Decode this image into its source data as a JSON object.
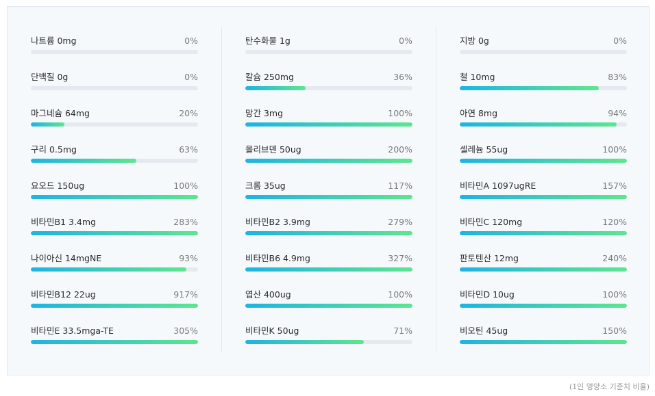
{
  "columns": [
    [
      {
        "label": "나트륨 0mg",
        "pct": "0%",
        "value": 0
      },
      {
        "label": "단백질 0g",
        "pct": "0%",
        "value": 0
      },
      {
        "label": "마그네슘 64mg",
        "pct": "20%",
        "value": 20
      },
      {
        "label": "구리 0.5mg",
        "pct": "63%",
        "value": 63
      },
      {
        "label": "요오드 150ug",
        "pct": "100%",
        "value": 100
      },
      {
        "label": "비타민B1 3.4mg",
        "pct": "283%",
        "value": 283
      },
      {
        "label": "나이아신 14mgNE",
        "pct": "93%",
        "value": 93
      },
      {
        "label": "비타민B12 22ug",
        "pct": "917%",
        "value": 917
      },
      {
        "label": "비타민E 33.5mga-TE",
        "pct": "305%",
        "value": 305
      }
    ],
    [
      {
        "label": "탄수화물 1g",
        "pct": "0%",
        "value": 0
      },
      {
        "label": "칼슘 250mg",
        "pct": "36%",
        "value": 36
      },
      {
        "label": "망간 3mg",
        "pct": "100%",
        "value": 100
      },
      {
        "label": "몰리브덴 50ug",
        "pct": "200%",
        "value": 200
      },
      {
        "label": "크롬 35ug",
        "pct": "117%",
        "value": 117
      },
      {
        "label": "비타민B2 3.9mg",
        "pct": "279%",
        "value": 279
      },
      {
        "label": "비타민B6 4.9mg",
        "pct": "327%",
        "value": 327
      },
      {
        "label": "엽산 400ug",
        "pct": "100%",
        "value": 100
      },
      {
        "label": "비타민K 50ug",
        "pct": "71%",
        "value": 71
      }
    ],
    [
      {
        "label": "지방 0g",
        "pct": "0%",
        "value": 0
      },
      {
        "label": "철 10mg",
        "pct": "83%",
        "value": 83
      },
      {
        "label": "아연 8mg",
        "pct": "94%",
        "value": 94
      },
      {
        "label": "셀레늄 55ug",
        "pct": "100%",
        "value": 100
      },
      {
        "label": "비타민A 1097ugRE",
        "pct": "157%",
        "value": 157
      },
      {
        "label": "비타민C 120mg",
        "pct": "120%",
        "value": 120
      },
      {
        "label": "판토텐산 12mg",
        "pct": "240%",
        "value": 240
      },
      {
        "label": "비타민D 10ug",
        "pct": "100%",
        "value": 100
      },
      {
        "label": "비오틴 45ug",
        "pct": "150%",
        "value": 150
      }
    ]
  ],
  "footnote": "(1인 영양소 기준치 비율)",
  "colors": {
    "bar_start": "#1db4e2",
    "bar_end": "#5de68f",
    "track": "#e6e9ef"
  }
}
